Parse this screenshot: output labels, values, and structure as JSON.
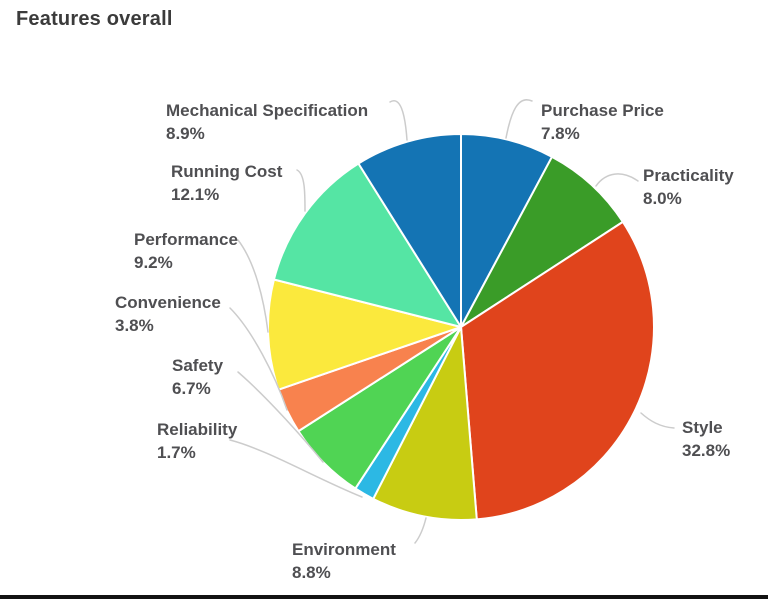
{
  "page": {
    "title": "Features overall",
    "background_color": "#ffffff",
    "bottom_bar_color": "#121212"
  },
  "chart_data": {
    "type": "pie",
    "title": "Features overall",
    "legend": "none",
    "start_angle_deg": 0,
    "direction": "clockwise",
    "label_format": "name + percent",
    "label_color": "#4f4f52",
    "leader_line_color": "#cccccc",
    "slices": [
      {
        "label": "Purchase Price",
        "value": 7.8,
        "pct_label": "7.8%",
        "color": "#1474b4"
      },
      {
        "label": "Practicality",
        "value": 8.0,
        "pct_label": "8.0%",
        "color": "#3a9c28"
      },
      {
        "label": "Style",
        "value": 32.8,
        "pct_label": "32.8%",
        "color": "#e0441c"
      },
      {
        "label": "Environment",
        "value": 8.8,
        "pct_label": "8.8%",
        "color": "#c8cc12"
      },
      {
        "label": "Reliability",
        "value": 1.7,
        "pct_label": "1.7%",
        "color": "#2cb8e4"
      },
      {
        "label": "Safety",
        "value": 6.7,
        "pct_label": "6.7%",
        "color": "#50d454"
      },
      {
        "label": "Convenience",
        "value": 3.8,
        "pct_label": "3.8%",
        "color": "#f8824e"
      },
      {
        "label": "Performance",
        "value": 9.2,
        "pct_label": "9.2%",
        "color": "#fbe93d"
      },
      {
        "label": "Running Cost",
        "value": 12.1,
        "pct_label": "12.1%",
        "color": "#55e5a4"
      },
      {
        "label": "Mechanical Specification",
        "value": 8.9,
        "pct_label": "8.9%",
        "color": "#1474b4"
      }
    ]
  }
}
